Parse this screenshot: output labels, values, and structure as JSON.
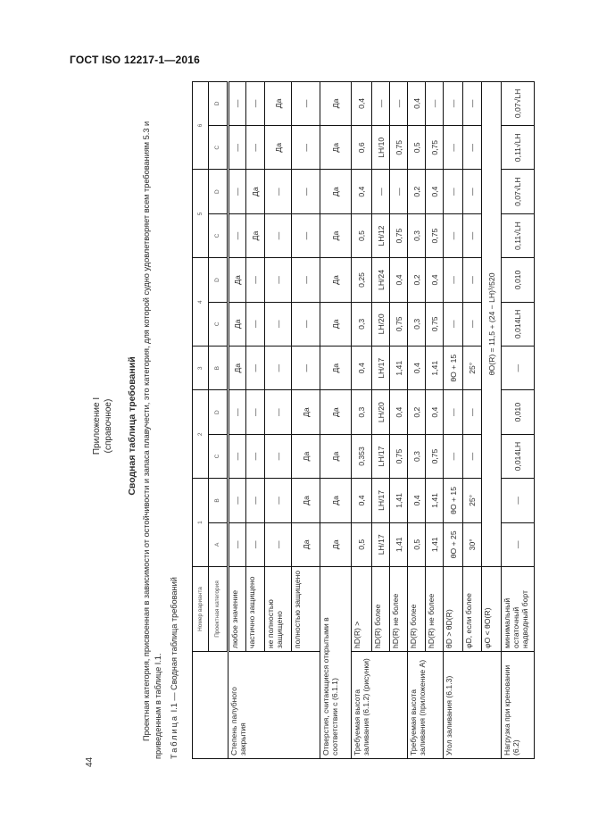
{
  "header": {
    "doc_code": "ГОСТ ISO 12217-1—2016",
    "page_number": "44"
  },
  "appendix": {
    "title": "Приложение I",
    "note": "(справочное)"
  },
  "section_title": "Сводная таблица требований",
  "paragraph": "Проектная категория, присвоенная в зависимости от остойчивости и запаса плавучести, это категория, для которой судно удовлетворяет всем требованиям 5.3 и приведенным в таблице I.1.",
  "caption": {
    "prefix": "Таблица",
    "text": " I.1 — Сводная таблица требований"
  },
  "table": {
    "number_label": "Номер варианта",
    "category_label": "Проектная категория",
    "variants": [
      {
        "num": "1",
        "cats": [
          "A",
          "B"
        ]
      },
      {
        "num": "2",
        "cats": [
          "C",
          "D"
        ]
      },
      {
        "num": "3",
        "cats": [
          "B"
        ]
      },
      {
        "num": "4",
        "cats": [
          "C",
          "D"
        ]
      },
      {
        "num": "5",
        "cats": [
          "C",
          "D"
        ]
      },
      {
        "num": "6",
        "cats": [
          "C",
          "D"
        ]
      }
    ],
    "rows": [
      {
        "group": "Степень палубного закрытия",
        "rowspan": 4,
        "label": "любое значение",
        "values": [
          "—",
          "—",
          "—",
          "—",
          "Да",
          "Да",
          "Да",
          "—",
          "—",
          "—",
          "—"
        ]
      },
      {
        "label": "частично защищено",
        "values": [
          "—",
          "—",
          "—",
          "—",
          "—",
          "—",
          "—",
          "Да",
          "Да",
          "—",
          "—"
        ]
      },
      {
        "label": "не полностью защищено",
        "values": [
          "—",
          "—",
          "—",
          "—",
          "—",
          "—",
          "—",
          "—",
          "—",
          "Да",
          "Да"
        ]
      },
      {
        "label": "полностью защищено",
        "values": [
          "Да",
          "Да",
          "Да",
          "Да",
          "—",
          "—",
          "—",
          "—",
          "—",
          "—",
          "—"
        ]
      },
      {
        "full_label": "Отверстия, считающиеся открытыми в соответствии с (6.1.1)",
        "values": [
          "Да",
          "Да",
          "Да",
          "Да",
          "Да",
          "Да",
          "Да",
          "Да",
          "Да",
          "Да",
          "Да"
        ]
      },
      {
        "group": "Требуемая высота заливания (6.1.2) (рисунки)",
        "rowspan": 3,
        "label": "hD(R) >",
        "values": [
          "0,5",
          "0,4",
          "0,353",
          "0,3",
          "0,4",
          "0,3",
          "0,25",
          "0,5",
          "0,4",
          "0,6",
          "0,4"
        ]
      },
      {
        "label": "hD(R) более",
        "values": [
          "LH/17",
          "LH/17",
          "LH/17",
          "LH/20",
          "LH/17",
          "LH/20",
          "LH/24",
          "LH/12",
          "—",
          "LH/10",
          "—"
        ]
      },
      {
        "label": "hD(R) не более",
        "values": [
          "1,41",
          "1,41",
          "0,75",
          "0,4",
          "1,41",
          "0,75",
          "0,4",
          "0,75",
          "—",
          "0,75",
          "—"
        ]
      },
      {
        "group": "Требуемая высота заливания (приложение А)",
        "rowspan": 2,
        "label": "hD(R) более",
        "values": [
          "0,5",
          "0,4",
          "0,3",
          "0,2",
          "0,4",
          "0,3",
          "0,2",
          "0,3",
          "0,2",
          "0,5",
          "0,4"
        ]
      },
      {
        "label": "hD(R) не более",
        "values": [
          "1,41",
          "1,41",
          "0,75",
          "0,4",
          "1,41",
          "0,75",
          "0,4",
          "0,75",
          "0,4",
          "0,75",
          "—"
        ]
      },
      {
        "group": "Угол заливания (6.1.3)",
        "rowspan": 3,
        "label": "θD > θD(R)",
        "values": [
          "θO + 25",
          "θO + 15",
          "—",
          "—",
          "θO + 15",
          "—",
          "—",
          "—",
          "—",
          "—",
          "—"
        ]
      },
      {
        "label": "φD, если более",
        "values": [
          "30°",
          "25°",
          "—",
          "—",
          "25°",
          "—",
          "—",
          "—",
          "—",
          "—",
          "—"
        ]
      },
      {
        "label": "φO < θO(R)",
        "merged": "θO(R) = 11,5 + (24 − LH)³/520"
      },
      {
        "group": "Нагрузка при креновании (6.2)",
        "rowspan": 1,
        "label": "минимальный остаточный надводный борт",
        "values": [
          "—",
          "—",
          "0,014LH",
          "0,010",
          "—",
          "0,014LH",
          "0,010",
          "0,11√LH",
          "0,07√LH",
          "0,11√LH",
          "0,07√LH"
        ]
      }
    ]
  }
}
